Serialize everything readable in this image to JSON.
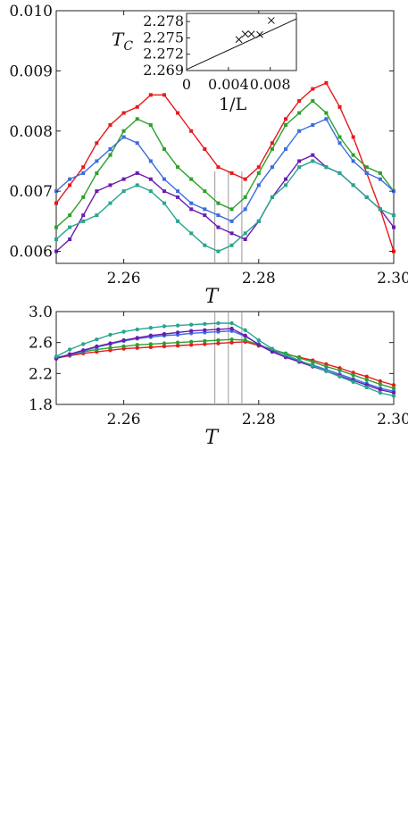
{
  "chart_data": [
    {
      "type": "line",
      "xlabel": "T",
      "ylabel": "",
      "xlim": [
        2.25,
        2.3
      ],
      "ylim": [
        0.0058,
        0.01
      ],
      "xticks": [
        2.26,
        2.28,
        2.3
      ],
      "xtick_labels": [
        "2.26",
        "2.28",
        "2.30"
      ],
      "yticks": [
        0.006,
        0.007,
        0.008,
        0.009,
        0.01
      ],
      "ytick_labels": [
        "0.006",
        "0.007",
        "0.008",
        "0.009",
        "0.010"
      ],
      "vlines": [
        2.2735,
        2.2755,
        2.2775
      ],
      "x": [
        2.25,
        2.252,
        2.254,
        2.256,
        2.258,
        2.26,
        2.262,
        2.264,
        2.266,
        2.268,
        2.27,
        2.272,
        2.274,
        2.276,
        2.278,
        2.28,
        2.282,
        2.284,
        2.286,
        2.288,
        2.29,
        2.292,
        2.294,
        2.296,
        2.298,
        2.3
      ],
      "series": [
        {
          "color": "#e8191c",
          "marker": "square",
          "values": [
            0.0068,
            0.0071,
            0.0074,
            0.0078,
            0.0081,
            0.0083,
            0.0084,
            0.0086,
            0.0086,
            0.0083,
            0.008,
            0.0077,
            0.0074,
            0.0073,
            0.0072,
            0.0074,
            0.0078,
            0.0082,
            0.0085,
            0.0087,
            0.0088,
            0.0084,
            0.0079,
            0.0073,
            0.0067,
            0.006
          ]
        },
        {
          "color": "#2ca02c",
          "marker": "square",
          "values": [
            0.0064,
            0.0066,
            0.0069,
            0.0073,
            0.0076,
            0.008,
            0.0082,
            0.0081,
            0.0077,
            0.0074,
            0.0072,
            0.007,
            0.0068,
            0.0067,
            0.0069,
            0.0073,
            0.0077,
            0.0081,
            0.0083,
            0.0085,
            0.0083,
            0.0079,
            0.0076,
            0.0074,
            0.0073,
            0.007
          ]
        },
        {
          "color": "#3b6de0",
          "marker": "square",
          "values": [
            0.007,
            0.0072,
            0.0073,
            0.0075,
            0.0077,
            0.0079,
            0.0078,
            0.0075,
            0.0072,
            0.007,
            0.0068,
            0.0067,
            0.0066,
            0.0065,
            0.0067,
            0.0071,
            0.0074,
            0.0077,
            0.008,
            0.0081,
            0.0082,
            0.0078,
            0.0075,
            0.0073,
            0.0072,
            0.007
          ]
        },
        {
          "color": "#6a1cb0",
          "marker": "square",
          "values": [
            0.006,
            0.0062,
            0.0066,
            0.007,
            0.0071,
            0.0072,
            0.0073,
            0.0072,
            0.007,
            0.0069,
            0.0067,
            0.0066,
            0.0064,
            0.0063,
            0.0062,
            0.0065,
            0.0069,
            0.0072,
            0.0075,
            0.0076,
            0.0074,
            0.0073,
            0.0071,
            0.0069,
            0.0067,
            0.0064
          ]
        },
        {
          "color": "#26a68e",
          "marker": "square",
          "values": [
            0.0062,
            0.0064,
            0.0065,
            0.0066,
            0.0068,
            0.007,
            0.0071,
            0.007,
            0.0068,
            0.0065,
            0.0063,
            0.0061,
            0.006,
            0.0061,
            0.0063,
            0.0065,
            0.0069,
            0.0071,
            0.0074,
            0.0075,
            0.0074,
            0.0073,
            0.0071,
            0.0069,
            0.0067,
            0.0066
          ]
        }
      ],
      "inset": {
        "type": "scatter",
        "xlabel": "1/L",
        "ylabel": "T_C",
        "xlim": [
          0,
          0.0105
        ],
        "ylim": [
          2.269,
          2.2795
        ],
        "xticks": [
          0,
          0.004,
          0.008
        ],
        "xtick_labels": [
          "0",
          "0.004",
          "0.008"
        ],
        "yticks": [
          2.269,
          2.272,
          2.275,
          2.278
        ],
        "ytick_labels": [
          "2.269",
          "2.272",
          "2.275",
          "2.278"
        ],
        "points": [
          {
            "x": 0.005,
            "y": 2.2747
          },
          {
            "x": 0.0056,
            "y": 2.2757
          },
          {
            "x": 0.0062,
            "y": 2.2757
          },
          {
            "x": 0.007,
            "y": 2.2756
          },
          {
            "x": 0.0081,
            "y": 2.2782
          }
        ],
        "fit": {
          "x": [
            0,
            0.0105
          ],
          "y": [
            2.2692,
            2.2785
          ]
        }
      }
    },
    {
      "type": "line",
      "xlabel": "T",
      "ylabel": "",
      "xlim": [
        2.25,
        2.3
      ],
      "ylim": [
        1.8,
        3.0
      ],
      "xticks": [
        2.26,
        2.28,
        2.3
      ],
      "xtick_labels": [
        "2.26",
        "2.28",
        "2.30"
      ],
      "yticks": [
        1.8,
        2.2,
        2.6,
        3.0
      ],
      "ytick_labels": [
        "1.8",
        "2.2",
        "2.6",
        "3.0"
      ],
      "vlines": [
        2.2735,
        2.2755,
        2.2775
      ],
      "x": [
        2.25,
        2.252,
        2.254,
        2.256,
        2.258,
        2.26,
        2.262,
        2.264,
        2.266,
        2.268,
        2.27,
        2.272,
        2.274,
        2.276,
        2.278,
        2.28,
        2.282,
        2.284,
        2.286,
        2.288,
        2.29,
        2.292,
        2.294,
        2.296,
        2.298,
        2.3
      ],
      "series": [
        {
          "color": "#e8191c",
          "marker": "circle",
          "values": [
            2.4,
            2.43,
            2.46,
            2.48,
            2.5,
            2.52,
            2.53,
            2.54,
            2.55,
            2.56,
            2.57,
            2.58,
            2.59,
            2.6,
            2.61,
            2.56,
            2.5,
            2.45,
            2.41,
            2.37,
            2.32,
            2.27,
            2.21,
            2.16,
            2.1,
            2.05
          ]
        },
        {
          "color": "#2ca02c",
          "marker": "circle",
          "values": [
            2.41,
            2.44,
            2.48,
            2.51,
            2.53,
            2.55,
            2.57,
            2.58,
            2.59,
            2.6,
            2.61,
            2.62,
            2.63,
            2.64,
            2.63,
            2.57,
            2.51,
            2.46,
            2.4,
            2.35,
            2.29,
            2.24,
            2.18,
            2.12,
            2.06,
            2.01
          ]
        },
        {
          "color": "#3b6de0",
          "marker": "circle",
          "values": [
            2.4,
            2.44,
            2.49,
            2.54,
            2.58,
            2.62,
            2.65,
            2.67,
            2.69,
            2.7,
            2.72,
            2.73,
            2.74,
            2.75,
            2.68,
            2.58,
            2.49,
            2.42,
            2.36,
            2.31,
            2.25,
            2.19,
            2.13,
            2.07,
            2.01,
            1.97
          ]
        },
        {
          "color": "#6a1cb0",
          "marker": "circle",
          "values": [
            2.39,
            2.45,
            2.5,
            2.55,
            2.59,
            2.63,
            2.66,
            2.69,
            2.71,
            2.73,
            2.75,
            2.76,
            2.77,
            2.78,
            2.69,
            2.57,
            2.48,
            2.41,
            2.35,
            2.29,
            2.23,
            2.17,
            2.11,
            2.05,
            1.99,
            1.95
          ]
        },
        {
          "color": "#26a68e",
          "marker": "circle",
          "values": [
            2.42,
            2.51,
            2.58,
            2.64,
            2.7,
            2.74,
            2.77,
            2.79,
            2.81,
            2.82,
            2.83,
            2.84,
            2.85,
            2.85,
            2.76,
            2.63,
            2.52,
            2.44,
            2.37,
            2.3,
            2.23,
            2.16,
            2.09,
            2.02,
            1.95,
            1.91
          ]
        }
      ]
    }
  ]
}
